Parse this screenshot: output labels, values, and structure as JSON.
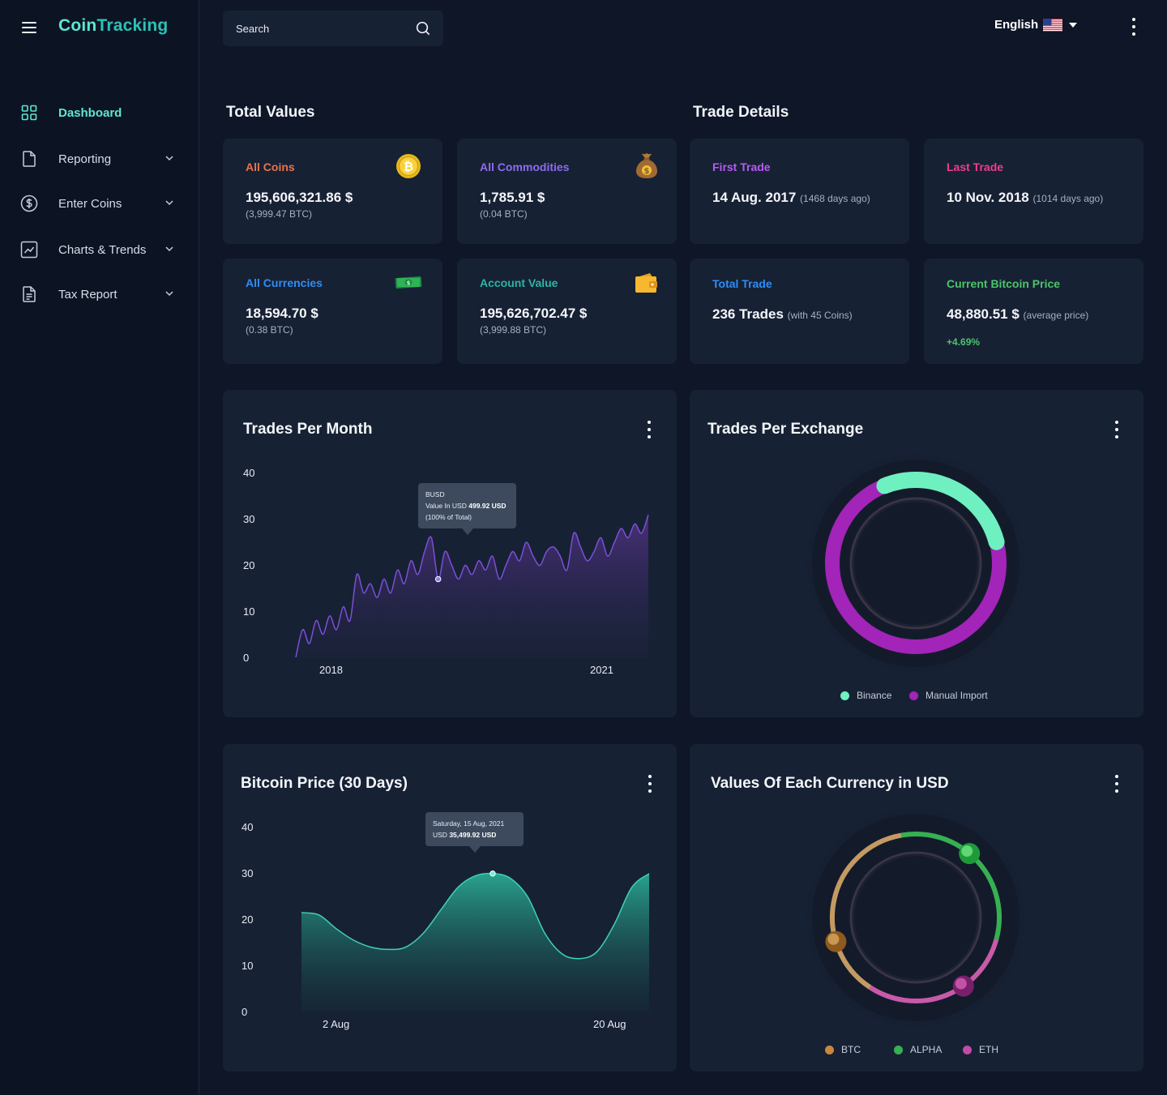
{
  "app": {
    "logo_part1": "Coin",
    "logo_part2": "Tracking"
  },
  "sidebar": {
    "items": [
      {
        "label": "Dashboard",
        "icon": "grid-icon",
        "active": true
      },
      {
        "label": "Reporting",
        "icon": "document-icon"
      },
      {
        "label": "Enter Coins",
        "icon": "dollar-circle-icon"
      },
      {
        "label": "Charts & Trends",
        "icon": "chart-trend-icon"
      },
      {
        "label": "Tax Report",
        "icon": "report-icon"
      }
    ]
  },
  "header": {
    "search_placeholder": "Search",
    "language": "English"
  },
  "total_values": {
    "title": "Total Values",
    "cards": [
      {
        "title": "All Coins",
        "value": "195,606,321.86 $",
        "sub": "(3,999.47 BTC)",
        "color": "#e8734a",
        "icon": "bitcoin-coin-icon"
      },
      {
        "title": "All Commodities",
        "value": "1,785.91 $",
        "sub": "(0.04 BTC)",
        "color": "#8b6cf0",
        "icon": "money-bag-icon"
      },
      {
        "title": "All Currencies",
        "value": "18,594.70 $",
        "sub": "(0.38 BTC)",
        "color": "#2f8df5",
        "icon": "banknote-icon"
      },
      {
        "title": "Account Value",
        "value": "195,626,702.47 $",
        "sub": "(3,999.88 BTC)",
        "color": "#2bb5a4",
        "icon": "wallet-icon"
      }
    ]
  },
  "trade_details": {
    "title": "Trade Details",
    "cards": [
      {
        "title": "First Trade",
        "value": "14 Aug. 2017",
        "note": "(1468 days ago)",
        "color": "#b75bf2"
      },
      {
        "title": "Last Trade",
        "value": "10 Nov. 2018",
        "note": "(1014 days ago)",
        "color": "#ef3d8f"
      },
      {
        "title": "Total Trade",
        "value": "236 Trades",
        "note": "(with 45 Coins)",
        "color": "#2f8df5"
      },
      {
        "title": "Current Bitcoin Price",
        "value": "48,880.51 $",
        "note": "(average price)",
        "change": "+4.69%",
        "color": "#4cc46a"
      }
    ]
  },
  "trades_per_month": {
    "title": "Trades Per Month",
    "tooltip": {
      "line1": "BUSD",
      "line2_prefix": "Value In USD ",
      "line2_value": "499.92 USD",
      "line3": "(100% of Total)"
    },
    "chart_data": {
      "type": "area",
      "ylim": [
        0,
        40
      ],
      "yticks": [
        "40",
        "30",
        "20",
        "10",
        "0"
      ],
      "xticks": [
        "2018",
        "2021"
      ],
      "values": [
        0,
        6,
        3,
        8,
        5,
        9,
        6,
        11,
        8,
        18,
        14,
        16,
        13,
        17,
        14,
        19,
        16,
        21,
        18,
        23,
        26,
        17,
        23,
        20,
        17,
        20,
        18,
        21,
        19,
        22,
        17,
        20,
        23,
        21,
        25,
        22,
        20,
        23,
        24,
        22,
        19,
        27,
        24,
        21,
        23,
        26,
        22,
        25,
        28,
        26,
        29,
        27,
        31
      ]
    }
  },
  "trades_per_exchange": {
    "title": "Trades Per Exchange",
    "chart_data": {
      "type": "pie",
      "series": [
        {
          "name": "Binance",
          "color": "#6ff0c0",
          "share": 0.27
        },
        {
          "name": "Manual Import",
          "color": "#a224b8",
          "share": 0.73
        }
      ]
    }
  },
  "bitcoin_price": {
    "title": "Bitcoin Price (30 Days)",
    "tooltip": {
      "line1": "Saturday, 15 Aug, 2021",
      "line2_prefix": "USD ",
      "line2_value": "35,499.92 USD"
    },
    "chart_data": {
      "type": "area",
      "ylim": [
        0,
        40
      ],
      "yticks": [
        "40",
        "30",
        "20",
        "10",
        "0"
      ],
      "xticks": [
        "2 Aug",
        "20 Aug"
      ],
      "values": [
        21.5,
        21,
        18,
        15.5,
        14,
        13.5,
        14,
        17,
        22,
        27,
        29.5,
        30,
        29,
        25,
        17,
        12.5,
        11.5,
        13,
        19,
        27,
        30
      ]
    }
  },
  "currency_values": {
    "title": "Values Of Each Currency in USD",
    "chart_data": {
      "type": "pie",
      "series": [
        {
          "name": "BTC",
          "color": "#c49a63",
          "share": 0.38
        },
        {
          "name": "ALPHA",
          "color": "#36b050",
          "share": 0.32
        },
        {
          "name": "ETH",
          "color": "#c85aa8",
          "share": 0.3
        }
      ]
    }
  }
}
